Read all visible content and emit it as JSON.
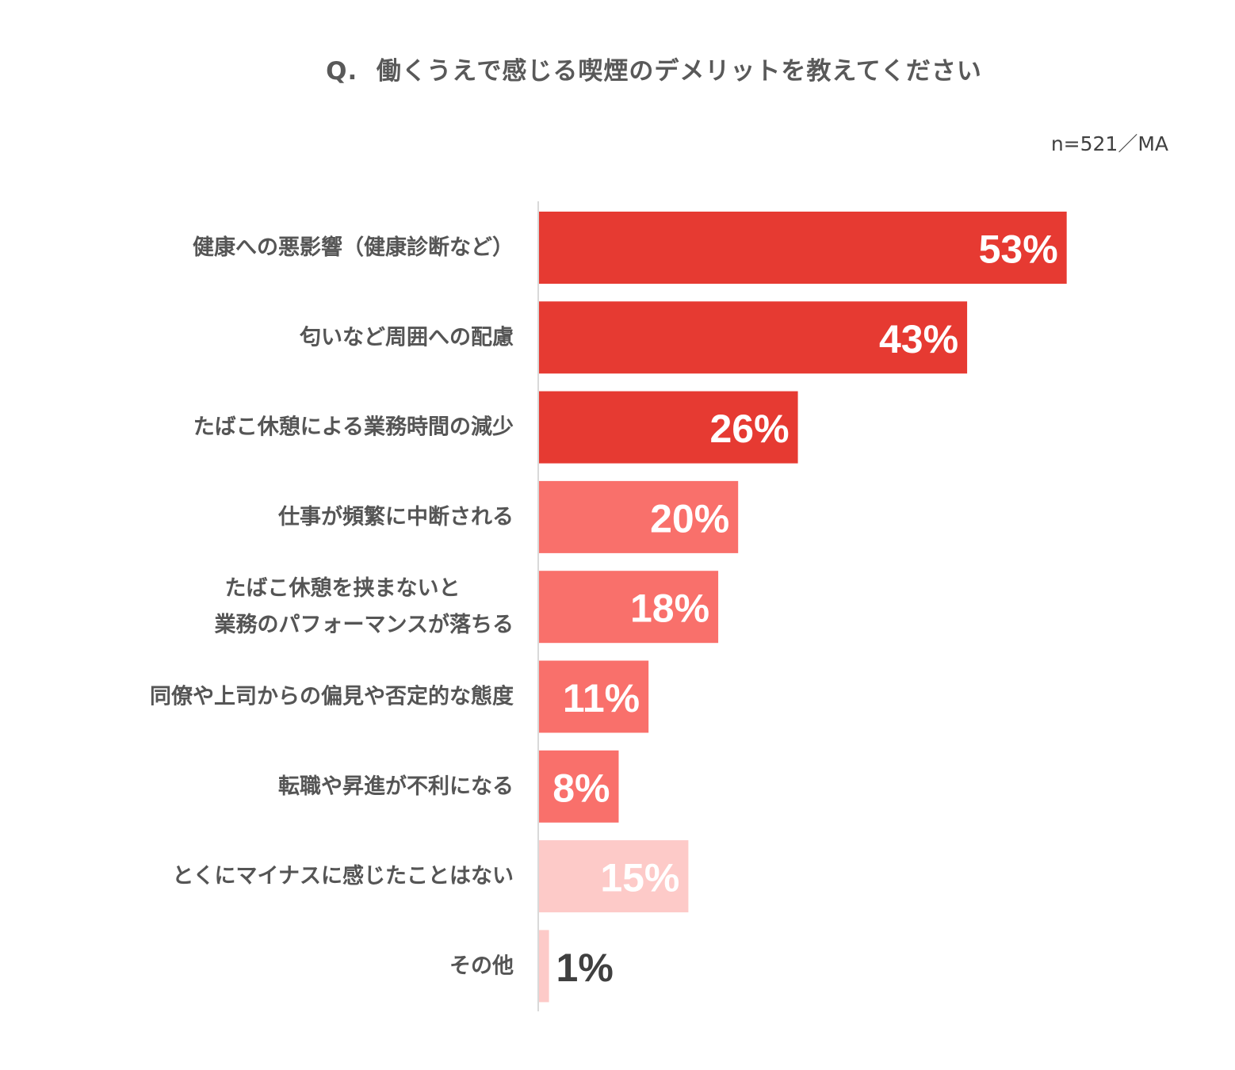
{
  "title": "Q.  働くうえで感じる喫煙のデメリットを教えてください",
  "note": "n=521／MA",
  "colors": {
    "dark": "#e63a32",
    "medium": "#f9706b",
    "light": "#fdcac8",
    "axis": "#d9d9d9",
    "label_text": "#555555",
    "value_text_light": "#ffffff",
    "value_text_dark": "#404040"
  },
  "chart_data": {
    "type": "bar",
    "orientation": "horizontal",
    "xlim": [
      0,
      60
    ],
    "categories": [
      [
        "健康への悪影響（健康診断など）"
      ],
      [
        "匂いなど周囲への配慮"
      ],
      [
        "たばこ休憩による業務時間の減少"
      ],
      [
        "仕事が頻繁に中断される"
      ],
      [
        "たばこ休憩を挟まないと",
        "業務のパフォーマンスが落ちる"
      ],
      [
        "同僚や上司からの偏見や否定的な態度"
      ],
      [
        "転職や昇進が不利になる"
      ],
      [
        "とくにマイナスに感じたことはない"
      ],
      [
        "その他"
      ]
    ],
    "values": [
      53,
      43,
      26,
      20,
      18,
      11,
      8,
      15,
      1
    ],
    "value_labels": [
      "53%",
      "43%",
      "26%",
      "20%",
      "18%",
      "11%",
      "8%",
      "15%",
      "1%"
    ],
    "bar_color_groups": [
      "dark",
      "dark",
      "dark",
      "medium",
      "medium",
      "medium",
      "medium",
      "light",
      "light"
    ],
    "grid": false,
    "legend": "none"
  }
}
